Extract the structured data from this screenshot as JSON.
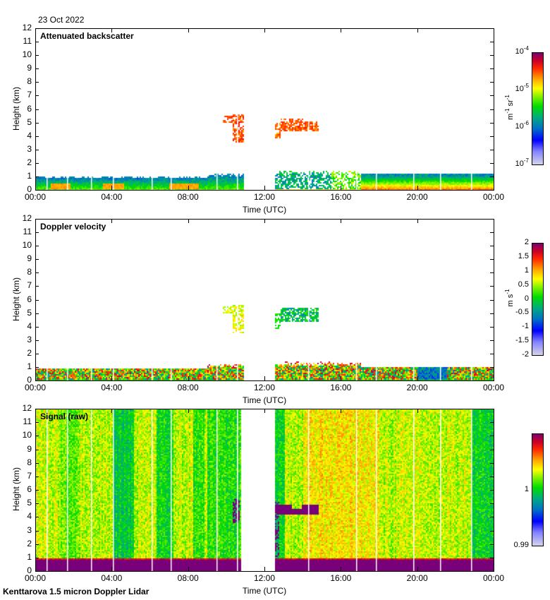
{
  "header": {
    "date": "23 Oct 2022"
  },
  "footer": {
    "instrument": "Kenttarova 1.5 micron Doppler Lidar"
  },
  "chart_data": [
    {
      "type": "heatmap",
      "title": "Attenuated backscatter",
      "xlabel": "Time (UTC)",
      "ylabel": "Height (km)",
      "xlim": [
        "00:00",
        "00:00"
      ],
      "ylim": [
        0,
        12
      ],
      "x_ticks": [
        "00:00",
        "04:00",
        "08:00",
        "12:00",
        "16:00",
        "20:00",
        "00:00"
      ],
      "y_ticks": [
        "0",
        "1",
        "2",
        "3",
        "4",
        "5",
        "6",
        "7",
        "8",
        "9",
        "10",
        "11",
        "12"
      ],
      "colorbar": {
        "scale": "log",
        "range": [
          1e-07,
          0.0001
        ],
        "ticks": [
          {
            "base": "10",
            "exp": "-4"
          },
          {
            "base": "10",
            "exp": "-5"
          },
          {
            "base": "10",
            "exp": "-6"
          },
          {
            "base": "10",
            "exp": "-7"
          }
        ],
        "unit": {
          "a": "m",
          "a_exp": "-1",
          "b": "sr",
          "b_exp": "-1"
        }
      },
      "features": [
        {
          "name": "boundary layer",
          "time_h": [
            0,
            10.8
          ],
          "height_km": [
            0,
            1.0
          ],
          "level": "yellow-green, orange core 0.2-0.5 km"
        },
        {
          "name": "cloud layer",
          "time_h": [
            9.8,
            10.9
          ],
          "height_km": [
            3.5,
            5.7
          ],
          "level": "orange-red"
        },
        {
          "name": "cloud layer",
          "time_h": [
            12.5,
            14.8
          ],
          "height_km": [
            4.3,
            5.3
          ],
          "level": "orange-red"
        },
        {
          "name": "boundary layer",
          "time_h": [
            12.5,
            24
          ],
          "height_km": [
            0,
            1.3
          ],
          "level": "blue-green, red/orange below 0.7 km after 17:00"
        },
        {
          "name": "data gap",
          "time_h": [
            10.9,
            12.5
          ],
          "height_km": [
            0,
            12
          ]
        }
      ]
    },
    {
      "type": "heatmap",
      "title": "Doppler velocity",
      "xlabel": "Time (UTC)",
      "ylabel": "Height (km)",
      "xlim": [
        "00:00",
        "00:00"
      ],
      "ylim": [
        0,
        12
      ],
      "x_ticks": [
        "00:00",
        "04:00",
        "08:00",
        "12:00",
        "16:00",
        "20:00",
        "00:00"
      ],
      "y_ticks": [
        "0",
        "1",
        "2",
        "3",
        "4",
        "5",
        "6",
        "7",
        "8",
        "9",
        "10",
        "11",
        "12"
      ],
      "colorbar": {
        "scale": "linear",
        "range": [
          -2,
          2
        ],
        "ticks": [
          "2",
          "1.5",
          "1",
          "0.5",
          "0",
          "-0.5",
          "-1",
          "-1.5",
          "-2"
        ],
        "unit": {
          "a": "m",
          "a_exp": "",
          "b": "s",
          "b_exp": "-1"
        }
      },
      "features": [
        {
          "name": "boundary layer",
          "time_h": [
            0,
            10.8
          ],
          "height_km": [
            0,
            1.0
          ],
          "level": "mixed -1 to +1.5"
        },
        {
          "name": "cloud layer",
          "time_h": [
            9.8,
            10.9
          ],
          "height_km": [
            3.5,
            5.7
          ],
          "level": "green-yellow ~0"
        },
        {
          "name": "cloud layer",
          "time_h": [
            12.5,
            14.8
          ],
          "height_km": [
            4.3,
            5.5
          ],
          "level": "blue-green ~-0.7"
        },
        {
          "name": "boundary layer",
          "time_h": [
            12.5,
            24
          ],
          "height_km": [
            0,
            1.3
          ],
          "level": "mixed, blue ~-1 near 20:00-21:30"
        },
        {
          "name": "data gap",
          "time_h": [
            10.9,
            12.5
          ],
          "height_km": [
            0,
            12
          ]
        }
      ]
    },
    {
      "type": "heatmap",
      "title": "Signal (raw)",
      "xlabel": "Time (UTC)",
      "ylabel": "Height (km)",
      "xlim": [
        "00:00",
        "00:00"
      ],
      "ylim": [
        0,
        12
      ],
      "x_ticks": [
        "00:00",
        "04:00",
        "08:00",
        "12:00",
        "16:00",
        "20:00",
        "00:00"
      ],
      "y_ticks": [
        "0",
        "1",
        "2",
        "3",
        "4",
        "5",
        "6",
        "7",
        "8",
        "9",
        "10",
        "11",
        "12"
      ],
      "colorbar": {
        "scale": "linear",
        "range": [
          0.99,
          1.01
        ],
        "ticks": [
          "1",
          "0.99"
        ],
        "unit": {
          "a": "",
          "a_exp": "",
          "b": "",
          "b_exp": ""
        }
      },
      "features": [
        {
          "name": "near-surface strong signal",
          "time_h": [
            0,
            24
          ],
          "height_km": [
            0,
            0.9
          ],
          "level": "purple (>1.01)"
        },
        {
          "name": "cloud signal",
          "time_h": [
            12.6,
            14.8
          ],
          "height_km": [
            4.2,
            5.0
          ],
          "level": "purple"
        },
        {
          "name": "low-signal columns",
          "time_h": [
            4,
            5.2
          ],
          "height_km": [
            1,
            12
          ],
          "level": "green-teal ~1.0"
        },
        {
          "name": "data gap",
          "time_h": [
            10.9,
            12.5
          ],
          "height_km": [
            0,
            12
          ]
        }
      ]
    }
  ]
}
